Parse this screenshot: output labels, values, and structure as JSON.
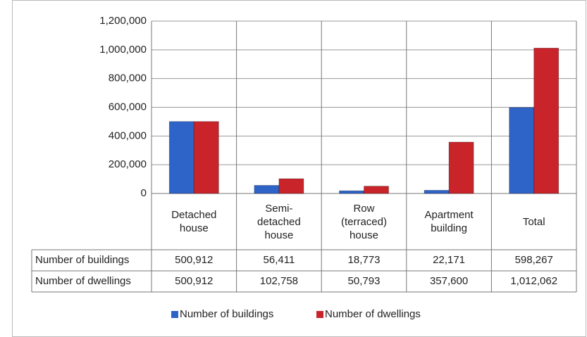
{
  "chart_data": {
    "type": "bar",
    "categories": [
      "Detached house",
      "Semi-detached house",
      "Row (terraced) house",
      "Apartment building",
      "Total"
    ],
    "series": [
      {
        "name": "Number of buildings",
        "color": "#2e63c8",
        "values": [
          500912,
          56411,
          18773,
          22171,
          598267
        ],
        "value_labels": [
          "500,912",
          "56,411",
          "18,773",
          "22,171",
          "598,267"
        ]
      },
      {
        "name": "Number of dwellings",
        "color": "#c8242a",
        "values": [
          500912,
          102758,
          50793,
          357600,
          1012062
        ],
        "value_labels": [
          "500,912",
          "102,758",
          "50,793",
          "357,600",
          "1,012,062"
        ]
      }
    ],
    "ylim": [
      0,
      1200000
    ],
    "yticks": [
      0,
      {
        "value": 200000,
        "label": "200,000"
      },
      {
        "value": 400000,
        "label": "400,000"
      },
      {
        "value": 600000,
        "label": "600,000"
      },
      {
        "value": 800000,
        "label": "800,000"
      },
      {
        "value": 1000000,
        "label": "1,000,000"
      },
      {
        "value": 1200000,
        "label": "1,200,000"
      }
    ],
    "grid": true,
    "legend": "bottom"
  }
}
